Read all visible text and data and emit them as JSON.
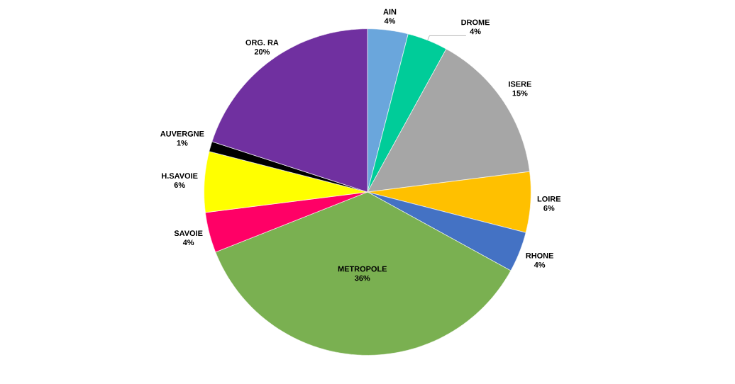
{
  "chart_data": {
    "type": "pie",
    "categories": [
      "AIN",
      "DROME",
      "ISERE",
      "LOIRE",
      "RHONE",
      "METROPOLE",
      "SAVOIE",
      "H.SAVOIE",
      "AUVERGNE",
      "ORG. RA"
    ],
    "values": [
      4,
      4,
      15,
      6,
      4,
      36,
      4,
      6,
      1,
      20
    ],
    "value_labels": [
      "4%",
      "4%",
      "15%",
      "6%",
      "4%",
      "36%",
      "4%",
      "6%",
      "1%",
      "20%"
    ],
    "colors": [
      "#6aa6dc",
      "#00cc99",
      "#a6a6a6",
      "#ffc000",
      "#4472c4",
      "#7ab051",
      "#ff0066",
      "#ffff00",
      "#000000",
      "#7030a0"
    ]
  }
}
